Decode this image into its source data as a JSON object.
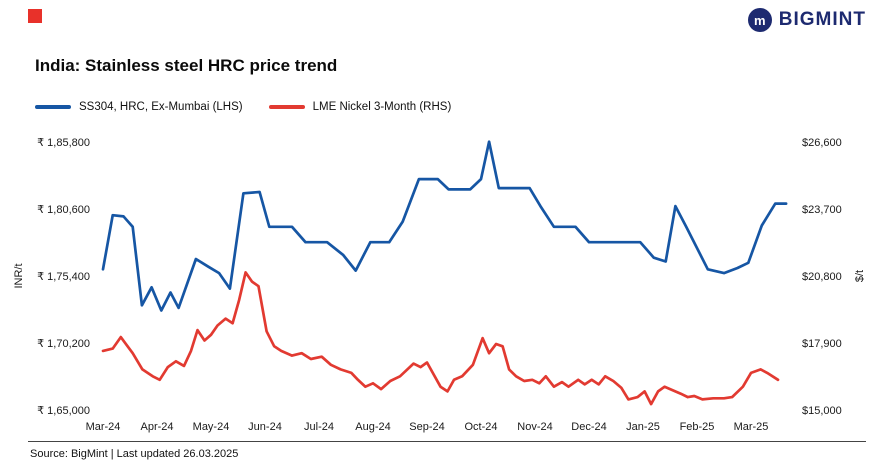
{
  "brand": {
    "name": "BIGMINT",
    "icon_letter": "m",
    "navy": "#1d2a70",
    "accent_red": "#e8312a"
  },
  "header": {
    "title": "India: Stainless steel HRC price trend"
  },
  "legend": {
    "items": [
      {
        "label": "SS304, HRC, Ex-Mumbai (LHS)",
        "color": "#1656a4"
      },
      {
        "label": "LME Nickel 3-Month (RHS)",
        "color": "#e23a31"
      }
    ]
  },
  "footer": {
    "source_text": "Source: BigMint | Last updated 26.03.2025"
  },
  "chart_data": {
    "type": "line",
    "title": "India: Stainless steel HRC price trend",
    "grid": false,
    "legend_position": "top-left",
    "x_axis": {
      "unit": "months (Mar-24 = 0)",
      "tick_labels": [
        "Mar-24",
        "Apr-24",
        "May-24",
        "Jun-24",
        "Jul-24",
        "Aug-24",
        "Sep-24",
        "Oct-24",
        "Nov-24",
        "Dec-24",
        "Jan-25",
        "Feb-25",
        "Mar-25"
      ]
    },
    "left_axis": {
      "label": "INR/t",
      "range": [
        165000,
        185800
      ],
      "ticks": [
        185800,
        180600,
        175400,
        170200,
        165000
      ],
      "tick_labels": [
        "₹ 1,85,800",
        "₹ 1,80,600",
        "₹ 1,75,400",
        "₹ 1,70,200",
        "₹ 1,65,000"
      ]
    },
    "right_axis": {
      "label": "$/t",
      "range": [
        15000,
        26600
      ],
      "ticks": [
        26600,
        23700,
        20800,
        17900,
        15000
      ],
      "tick_labels": [
        "$26,600",
        "$23,700",
        "$20,800",
        "$17,900",
        "$15,000"
      ]
    },
    "series": [
      {
        "name": "SS304, HRC, Ex-Mumbai (LHS)",
        "axis": "left",
        "color": "#1656a4",
        "points": [
          [
            0.0,
            176000
          ],
          [
            0.18,
            180200
          ],
          [
            0.38,
            180100
          ],
          [
            0.55,
            179300
          ],
          [
            0.72,
            173200
          ],
          [
            0.9,
            174600
          ],
          [
            1.08,
            172800
          ],
          [
            1.25,
            174200
          ],
          [
            1.4,
            173000
          ],
          [
            1.72,
            176800
          ],
          [
            1.95,
            176200
          ],
          [
            2.15,
            175700
          ],
          [
            2.35,
            174500
          ],
          [
            2.6,
            181900
          ],
          [
            2.9,
            182000
          ],
          [
            3.08,
            179300
          ],
          [
            3.5,
            179300
          ],
          [
            3.75,
            178100
          ],
          [
            4.15,
            178100
          ],
          [
            4.45,
            177100
          ],
          [
            4.68,
            175900
          ],
          [
            4.95,
            178100
          ],
          [
            5.3,
            178100
          ],
          [
            5.55,
            179700
          ],
          [
            5.85,
            183000
          ],
          [
            6.2,
            183000
          ],
          [
            6.4,
            182200
          ],
          [
            6.8,
            182200
          ],
          [
            7.0,
            183000
          ],
          [
            7.15,
            185900
          ],
          [
            7.33,
            182300
          ],
          [
            7.9,
            182300
          ],
          [
            8.1,
            180900
          ],
          [
            8.35,
            179300
          ],
          [
            8.75,
            179300
          ],
          [
            9.0,
            178100
          ],
          [
            9.95,
            178100
          ],
          [
            10.2,
            176900
          ],
          [
            10.42,
            176600
          ],
          [
            10.6,
            180900
          ],
          [
            10.8,
            179300
          ],
          [
            11.2,
            176000
          ],
          [
            11.5,
            175700
          ],
          [
            11.75,
            176100
          ],
          [
            11.95,
            176500
          ],
          [
            12.2,
            179400
          ],
          [
            12.45,
            181100
          ],
          [
            12.65,
            181100
          ]
        ]
      },
      {
        "name": "LME Nickel 3-Month (RHS)",
        "axis": "right",
        "color": "#e23a31",
        "points": [
          [
            0.0,
            17600
          ],
          [
            0.18,
            17700
          ],
          [
            0.33,
            18200
          ],
          [
            0.55,
            17500
          ],
          [
            0.73,
            16800
          ],
          [
            0.92,
            16500
          ],
          [
            1.05,
            16350
          ],
          [
            1.2,
            16900
          ],
          [
            1.35,
            17150
          ],
          [
            1.5,
            16950
          ],
          [
            1.63,
            17600
          ],
          [
            1.75,
            18500
          ],
          [
            1.88,
            18050
          ],
          [
            2.0,
            18300
          ],
          [
            2.12,
            18700
          ],
          [
            2.27,
            19000
          ],
          [
            2.4,
            18800
          ],
          [
            2.52,
            19800
          ],
          [
            2.64,
            21000
          ],
          [
            2.76,
            20600
          ],
          [
            2.88,
            20400
          ],
          [
            3.03,
            18450
          ],
          [
            3.17,
            17800
          ],
          [
            3.3,
            17600
          ],
          [
            3.5,
            17400
          ],
          [
            3.68,
            17500
          ],
          [
            3.85,
            17250
          ],
          [
            4.05,
            17350
          ],
          [
            4.22,
            17000
          ],
          [
            4.4,
            16800
          ],
          [
            4.6,
            16650
          ],
          [
            4.72,
            16350
          ],
          [
            4.86,
            16050
          ],
          [
            5.0,
            16200
          ],
          [
            5.15,
            15950
          ],
          [
            5.32,
            16300
          ],
          [
            5.5,
            16500
          ],
          [
            5.75,
            17050
          ],
          [
            5.88,
            16900
          ],
          [
            6.0,
            17100
          ],
          [
            6.25,
            16050
          ],
          [
            6.38,
            15850
          ],
          [
            6.5,
            16350
          ],
          [
            6.65,
            16500
          ],
          [
            6.85,
            17000
          ],
          [
            7.03,
            18150
          ],
          [
            7.15,
            17500
          ],
          [
            7.28,
            17900
          ],
          [
            7.4,
            17800
          ],
          [
            7.52,
            16800
          ],
          [
            7.65,
            16500
          ],
          [
            7.8,
            16300
          ],
          [
            7.95,
            16350
          ],
          [
            8.08,
            16200
          ],
          [
            8.2,
            16500
          ],
          [
            8.35,
            16050
          ],
          [
            8.5,
            16250
          ],
          [
            8.62,
            16050
          ],
          [
            8.8,
            16350
          ],
          [
            8.92,
            16150
          ],
          [
            9.05,
            16350
          ],
          [
            9.18,
            16150
          ],
          [
            9.3,
            16500
          ],
          [
            9.45,
            16300
          ],
          [
            9.6,
            16000
          ],
          [
            9.73,
            15500
          ],
          [
            9.9,
            15600
          ],
          [
            10.03,
            15850
          ],
          [
            10.15,
            15300
          ],
          [
            10.28,
            15850
          ],
          [
            10.4,
            16050
          ],
          [
            10.55,
            15900
          ],
          [
            10.7,
            15750
          ],
          [
            10.83,
            15600
          ],
          [
            10.95,
            15650
          ],
          [
            11.1,
            15500
          ],
          [
            11.3,
            15550
          ],
          [
            11.5,
            15550
          ],
          [
            11.65,
            15600
          ],
          [
            11.85,
            16050
          ],
          [
            12.0,
            16650
          ],
          [
            12.18,
            16800
          ],
          [
            12.3,
            16650
          ],
          [
            12.5,
            16350
          ]
        ]
      }
    ]
  }
}
